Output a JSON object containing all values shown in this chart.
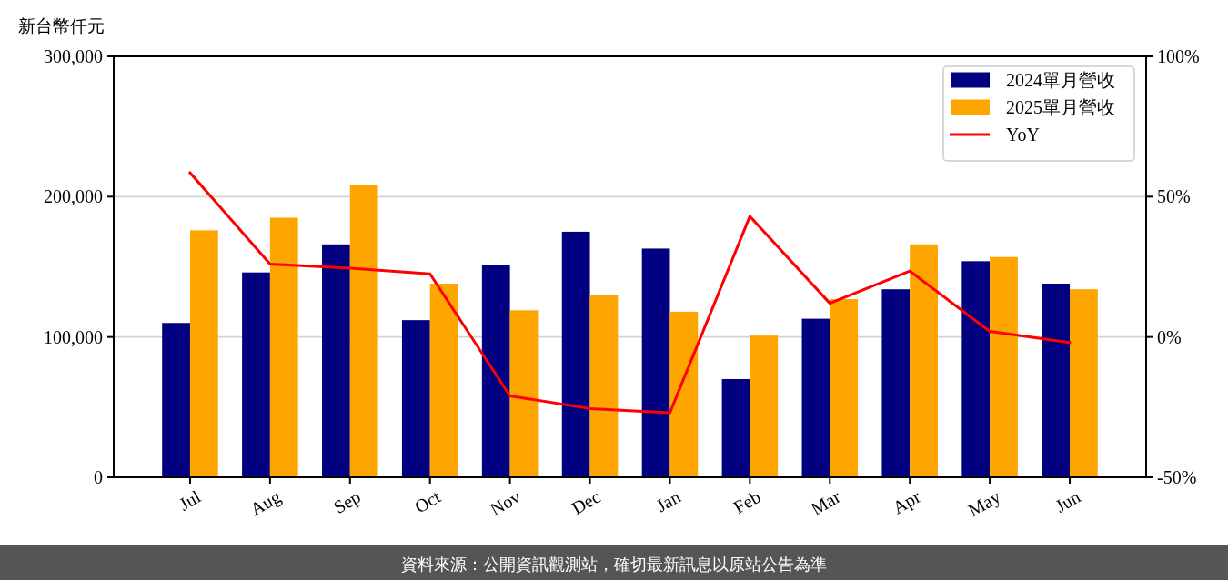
{
  "chart_data": {
    "type": "bar",
    "ylabel": "新台幣仟元",
    "categories": [
      "Jul",
      "Aug",
      "Sep",
      "Oct",
      "Nov",
      "Dec",
      "Jan",
      "Feb",
      "Mar",
      "Apr",
      "May",
      "Jun"
    ],
    "series": [
      {
        "name": "2024單月營收",
        "color": "#000080",
        "values": [
          110000,
          146000,
          166000,
          112000,
          151000,
          175000,
          163000,
          70000,
          113000,
          134000,
          154000,
          138000
        ]
      },
      {
        "name": "2025單月營收",
        "color": "#ffa500",
        "values": [
          176000,
          185000,
          208000,
          138000,
          119000,
          130000,
          118000,
          101000,
          127000,
          166000,
          157000,
          134000
        ]
      },
      {
        "name": "YoY",
        "type": "line",
        "axis": "y2",
        "color": "#ff0000",
        "values": [
          58.5,
          26,
          24.5,
          22.5,
          -21,
          -25.5,
          -27,
          43,
          12,
          23.5,
          2,
          -2
        ]
      }
    ],
    "ylim": [
      0,
      300000
    ],
    "yticks": [
      0,
      {
        "value": 100000,
        "label": "100,000"
      },
      {
        "value": 200000,
        "label": "200,000"
      },
      {
        "value": 300000,
        "label": "300,000"
      }
    ],
    "y2lim": [
      -50,
      100
    ],
    "y2ticks": [
      {
        "value": -50,
        "label": "-50%"
      },
      {
        "value": 0,
        "label": "0%"
      },
      {
        "value": 50,
        "label": "50%"
      },
      {
        "value": 100,
        "label": "100%"
      }
    ],
    "grid": "y",
    "legend": "top right",
    "annotations": [
      "資料來源：公開資訊觀測站，確切最新訊息以原站公告為準"
    ]
  }
}
